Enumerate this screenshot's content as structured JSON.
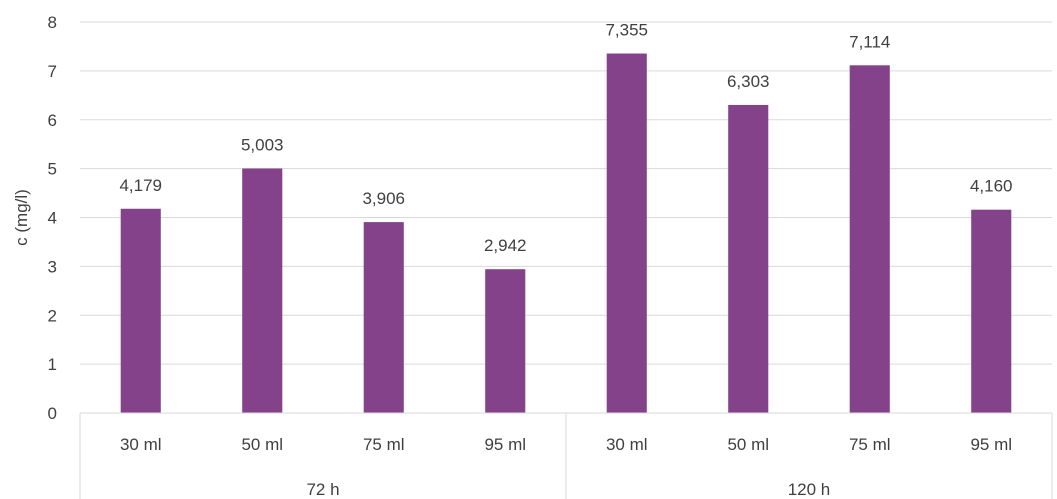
{
  "chart_data": {
    "type": "bar",
    "ylabel": "c (mg/l)",
    "ylim": [
      0,
      8
    ],
    "yticks": [
      "0",
      "1",
      "2",
      "3",
      "4",
      "5",
      "6",
      "7",
      "8"
    ],
    "grid": true,
    "bar_color": "#834289",
    "groups": [
      {
        "label": "72 h",
        "categories": [
          "30 ml",
          "50 ml",
          "75 ml",
          "95 ml"
        ],
        "values": [
          4.179,
          5.003,
          3.906,
          2.942
        ],
        "value_labels": [
          "4,179",
          "5,003",
          "3,906",
          "2,942"
        ]
      },
      {
        "label": "120 h",
        "categories": [
          "30 ml",
          "50 ml",
          "75 ml",
          "95 ml"
        ],
        "values": [
          7.355,
          6.303,
          7.114,
          4.16
        ],
        "value_labels": [
          "7,355",
          "6,303",
          "7,114",
          "4,160"
        ]
      }
    ]
  }
}
